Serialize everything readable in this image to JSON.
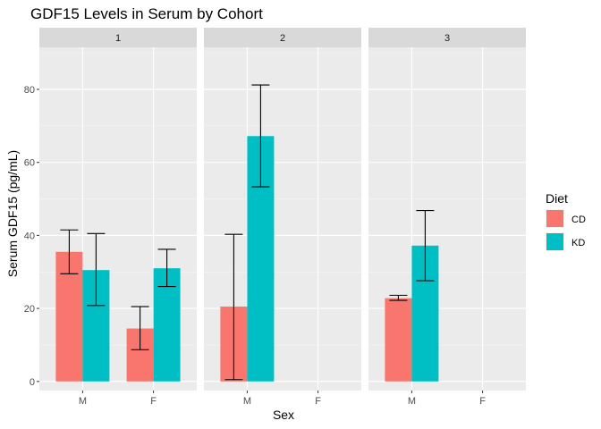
{
  "chart_data": {
    "type": "bar",
    "title": "GDF15 Levels in Serum by Cohort",
    "xlabel": "Sex",
    "ylabel": "Serum GDF15 (pg/mL)",
    "ylim": [
      -2.5,
      91.5
    ],
    "yticks": [
      "0",
      "20",
      "40",
      "60",
      "80"
    ],
    "categories": [
      "M",
      "F"
    ],
    "legend": {
      "title": "Diet",
      "placement": "right",
      "entries": [
        {
          "label": "CD",
          "color": "#F8766D"
        },
        {
          "label": "KD",
          "color": "#00BFC4"
        }
      ]
    },
    "grid": true,
    "panels": [
      {
        "label": "1",
        "bars": [
          {
            "category": "M",
            "series": "CD",
            "value": 35.5,
            "err_low": 29.5,
            "err_high": 41.5
          },
          {
            "category": "M",
            "series": "KD",
            "value": 30.5,
            "err_low": 20.8,
            "err_high": 40.5
          },
          {
            "category": "F",
            "series": "CD",
            "value": 14.5,
            "err_low": 8.7,
            "err_high": 20.5
          },
          {
            "category": "F",
            "series": "KD",
            "value": 31.0,
            "err_low": 26.0,
            "err_high": 36.2
          }
        ]
      },
      {
        "label": "2",
        "bars": [
          {
            "category": "M",
            "series": "CD",
            "value": 20.5,
            "err_low": 0.5,
            "err_high": 40.3
          },
          {
            "category": "M",
            "series": "KD",
            "value": 67.2,
            "err_low": 53.3,
            "err_high": 81.2
          }
        ]
      },
      {
        "label": "3",
        "bars": [
          {
            "category": "M",
            "series": "CD",
            "value": 22.8,
            "err_low": 22.2,
            "err_high": 23.6
          },
          {
            "category": "M",
            "series": "KD",
            "value": 37.2,
            "err_low": 27.6,
            "err_high": 46.8
          }
        ]
      }
    ]
  }
}
